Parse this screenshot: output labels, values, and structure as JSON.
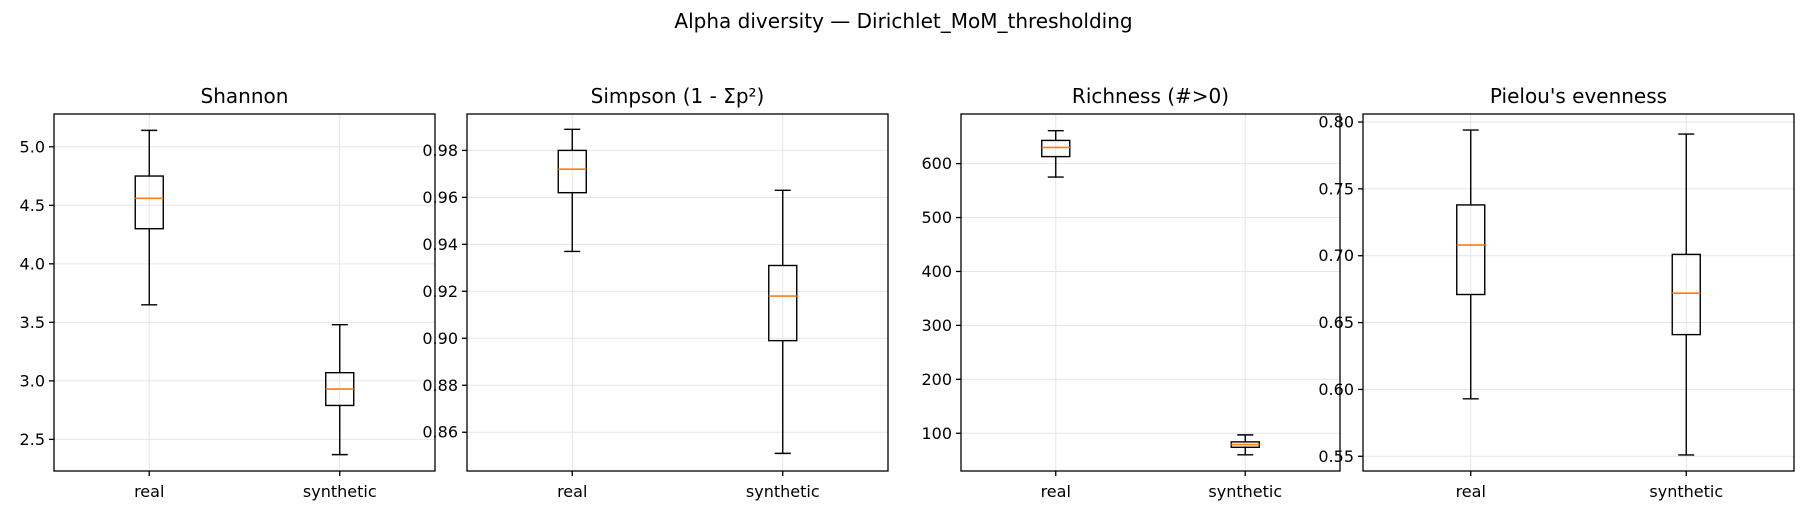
{
  "figure": {
    "title": "Alpha diversity — Dirichlet_MoM_thresholding"
  },
  "colors": {
    "median": "#ff7f0e",
    "box": "#000000",
    "grid": "#e6e6e6"
  },
  "chart_data": [
    {
      "type": "box",
      "title": "Shannon",
      "categories": [
        "real",
        "synthetic"
      ],
      "ylim": [
        2.23,
        5.28
      ],
      "yticks": [
        2.5,
        3.0,
        3.5,
        4.0,
        4.5,
        5.0
      ],
      "ytick_labels": [
        "2.5",
        "3.0",
        "3.5",
        "4.0",
        "4.5",
        "5.0"
      ],
      "grid": true,
      "boxes": [
        {
          "name": "real",
          "whisker_low": 3.65,
          "q1": 4.3,
          "median": 4.56,
          "q3": 4.75,
          "whisker_high": 5.14
        },
        {
          "name": "synthetic",
          "whisker_low": 2.37,
          "q1": 2.79,
          "median": 2.93,
          "q3": 3.07,
          "whisker_high": 3.48
        }
      ]
    },
    {
      "type": "box",
      "title": "Simpson (1 - Σp²)",
      "categories": [
        "real",
        "synthetic"
      ],
      "ylim": [
        0.8435,
        0.9955
      ],
      "yticks": [
        0.86,
        0.88,
        0.9,
        0.92,
        0.94,
        0.96,
        0.98
      ],
      "ytick_labels": [
        "0.86",
        "0.88",
        "0.90",
        "0.92",
        "0.94",
        "0.96",
        "0.98"
      ],
      "grid": true,
      "boxes": [
        {
          "name": "real",
          "whisker_low": 0.937,
          "q1": 0.962,
          "median": 0.972,
          "q3": 0.98,
          "whisker_high": 0.989
        },
        {
          "name": "synthetic",
          "whisker_low": 0.851,
          "q1": 0.899,
          "median": 0.918,
          "q3": 0.931,
          "whisker_high": 0.963
        }
      ]
    },
    {
      "type": "box",
      "title": "Richness (#>0)",
      "categories": [
        "real",
        "synthetic"
      ],
      "ylim": [
        30,
        692
      ],
      "yticks": [
        100,
        200,
        300,
        400,
        500,
        600
      ],
      "ytick_labels": [
        "100",
        "200",
        "300",
        "400",
        "500",
        "600"
      ],
      "grid": true,
      "boxes": [
        {
          "name": "real",
          "whisker_low": 575,
          "q1": 613,
          "median": 630,
          "q3": 643,
          "whisker_high": 661
        },
        {
          "name": "synthetic",
          "whisker_low": 60,
          "q1": 74,
          "median": 79,
          "q3": 84,
          "whisker_high": 97
        }
      ]
    },
    {
      "type": "box",
      "title": "Pielou's evenness",
      "categories": [
        "real",
        "synthetic"
      ],
      "ylim": [
        0.539,
        0.806
      ],
      "yticks": [
        0.55,
        0.6,
        0.65,
        0.7,
        0.75,
        0.8
      ],
      "ytick_labels": [
        "0.55",
        "0.60",
        "0.65",
        "0.70",
        "0.75",
        "0.80"
      ],
      "grid": true,
      "boxes": [
        {
          "name": "real",
          "whisker_low": 0.593,
          "q1": 0.671,
          "median": 0.708,
          "q3": 0.738,
          "whisker_high": 0.794
        },
        {
          "name": "synthetic",
          "whisker_low": 0.551,
          "q1": 0.641,
          "median": 0.672,
          "q3": 0.701,
          "whisker_high": 0.791
        }
      ]
    }
  ]
}
